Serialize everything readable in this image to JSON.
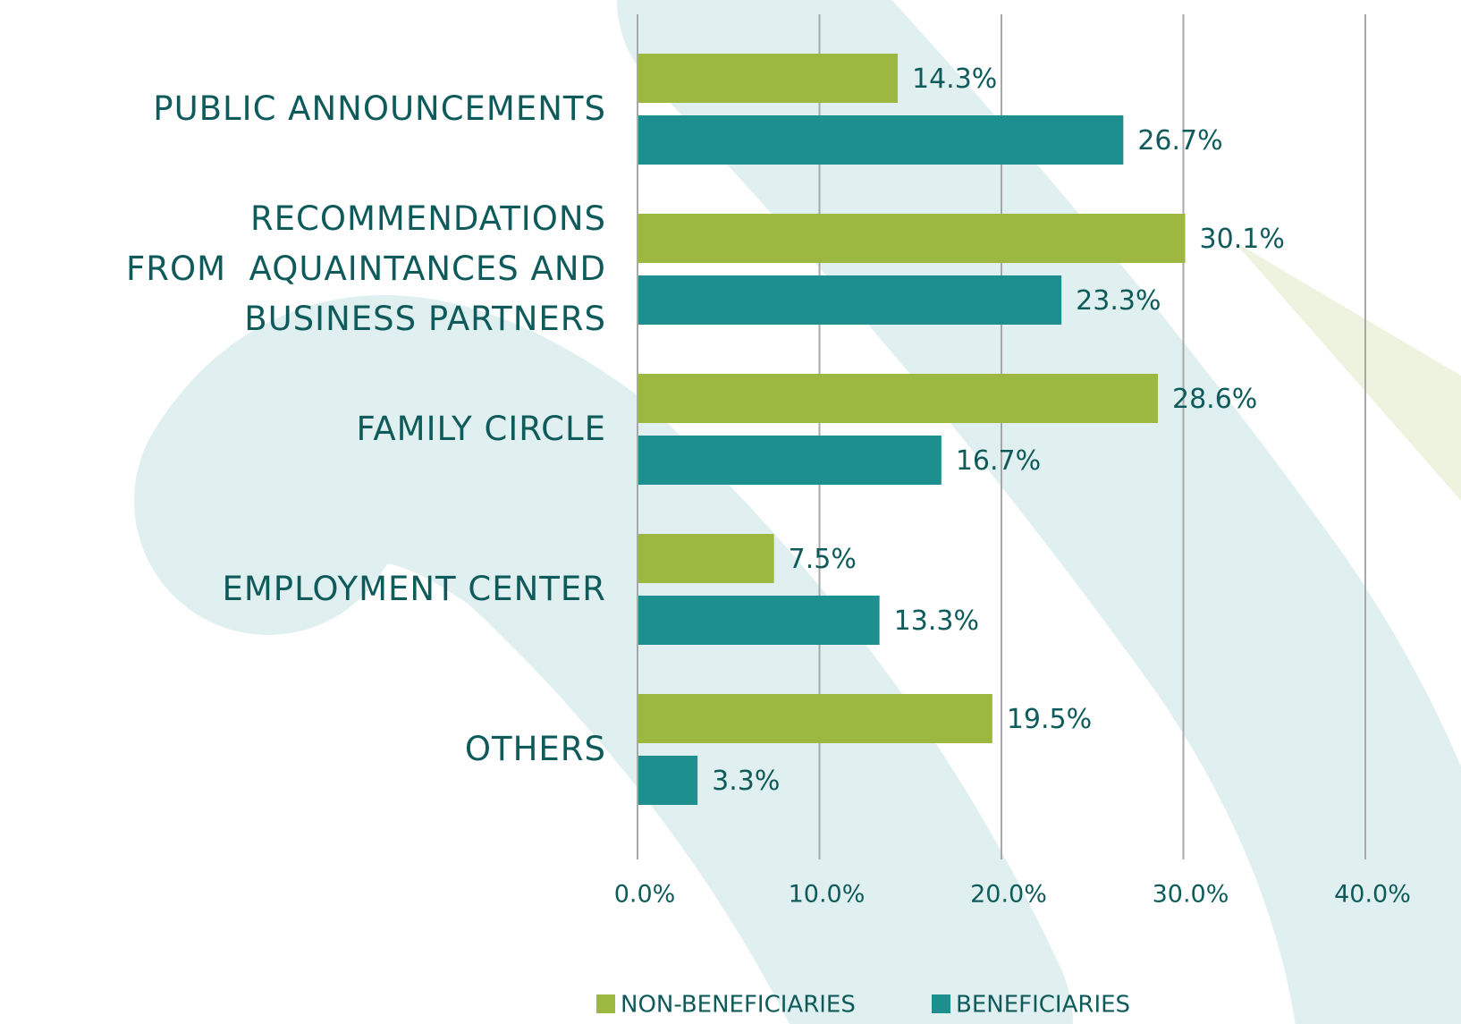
{
  "chart_data": {
    "type": "bar",
    "orientation": "horizontal",
    "categories": [
      "PUBLIC ANNOUNCEMENTS",
      "RECOMMENDATIONS\nFROM  AQUAINTANCES AND\nBUSINESS PARTNERS",
      "FAMILY CIRCLE",
      "EMPLOYMENT CENTER",
      "OTHERS"
    ],
    "series": [
      {
        "name": "NON-BENEFICIARIES",
        "color": "#9cb840",
        "values": [
          14.3,
          30.1,
          28.6,
          7.5,
          19.5
        ],
        "value_labels": [
          "14.3%",
          "30.1%",
          "28.6%",
          "7.5%",
          "19.5%"
        ]
      },
      {
        "name": "BENEFICIARIES",
        "color": "#1e8f8f",
        "values": [
          26.7,
          23.3,
          16.7,
          13.3,
          3.3
        ],
        "value_labels": [
          "26.7%",
          "23.3%",
          "16.7%",
          "13.3%",
          "3.3%"
        ]
      }
    ],
    "xlim": [
      0,
      40
    ],
    "xticks": [
      {
        "value": 0,
        "label": "0.0%"
      },
      {
        "value": 10,
        "label": "10.0%"
      },
      {
        "value": 20,
        "label": "20.0%"
      },
      {
        "value": 30,
        "label": "30.0%"
      },
      {
        "value": 40,
        "label": "40.0%"
      }
    ],
    "grid": true,
    "legend": "bottom"
  }
}
